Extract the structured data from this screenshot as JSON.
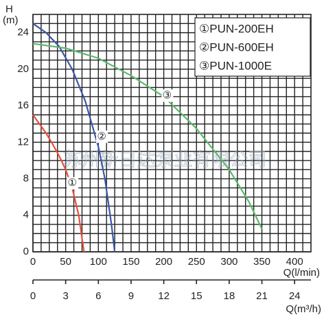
{
  "chart_data": {
    "type": "line",
    "y_label_top": "H",
    "y_label_unit": "(m)",
    "x_label": "Q(l/min)",
    "x2_label": "Q(m³/h)",
    "watermark": "苏州新日达泵业有限公司",
    "xlim": [
      0,
      425
    ],
    "xticks": [
      0,
      50,
      100,
      150,
      200,
      250,
      300,
      350,
      400
    ],
    "ylim": [
      0,
      26
    ],
    "yticks": [
      0,
      4,
      8,
      12,
      16,
      20,
      24
    ],
    "x2lim": [
      0,
      25.5
    ],
    "x2ticks": [
      0,
      3,
      6,
      9,
      12,
      15,
      18,
      21,
      24
    ],
    "grid": true,
    "series": [
      {
        "name": "①PUN-200EH",
        "label": "①",
        "color": "#e8503a",
        "x": [
          0,
          10,
          20,
          30,
          40,
          50,
          60,
          70,
          78
        ],
        "values": [
          15,
          14,
          13,
          11.8,
          10.5,
          9,
          7,
          4,
          0
        ]
      },
      {
        "name": "②PUN-600EH",
        "label": "②",
        "color": "#3a56a8",
        "x": [
          0,
          20,
          40,
          60,
          80,
          100,
          110,
          120,
          125
        ],
        "values": [
          25,
          24,
          22.5,
          20,
          16.5,
          11.5,
          8,
          3,
          0
        ]
      },
      {
        "name": "③PUN-1000E",
        "label": "③",
        "color": "#5cb86a",
        "x": [
          0,
          50,
          100,
          150,
          200,
          250,
          300,
          330,
          350
        ],
        "values": [
          22.8,
          22.3,
          21.2,
          19.3,
          17,
          13.5,
          9,
          5.5,
          2.5
        ]
      }
    ]
  }
}
